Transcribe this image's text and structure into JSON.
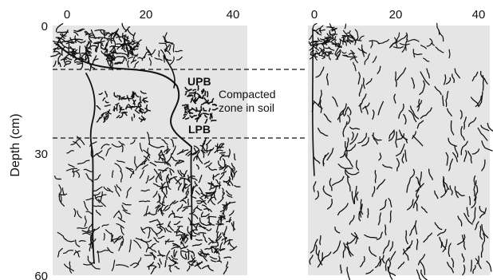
{
  "figure": {
    "y_axis_title": "Depth (cm)",
    "left_panel": {
      "x_ticks": [
        "0",
        "20",
        "40"
      ],
      "y_ticks": [
        "0",
        "30",
        "60"
      ],
      "labels": {
        "upb": "UPB",
        "lpb": "LPB",
        "compacted_line1": "Compacted",
        "compacted_line2": "zone in soil"
      }
    },
    "right_panel": {
      "x_ticks": [
        "0",
        "20",
        "40"
      ]
    },
    "colors": {
      "panel_background": "#e5e5e5",
      "roots": "#111111",
      "dashed_lines": "#111111"
    }
  }
}
